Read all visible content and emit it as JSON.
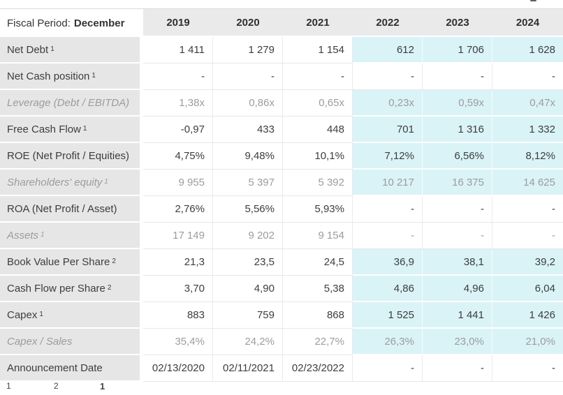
{
  "table": {
    "header": {
      "fiscal_period_label": "Fiscal Period:",
      "fiscal_period_value": "December",
      "years": [
        "2019",
        "2020",
        "2021",
        "2022",
        "2023",
        "2024"
      ]
    },
    "rows": [
      {
        "label": "Net Debt",
        "sup": "1",
        "muted": false,
        "estimates_highlight": true,
        "values": [
          "1 411",
          "1 279",
          "1 154",
          "612",
          "1 706",
          "1 628"
        ]
      },
      {
        "label": "Net Cash position",
        "sup": "1",
        "muted": false,
        "estimates_highlight": false,
        "values": [
          "-",
          "-",
          "-",
          "-",
          "-",
          "-"
        ]
      },
      {
        "label": "Leverage (Debt / EBITDA)",
        "sup": "",
        "muted": true,
        "estimates_highlight": true,
        "values": [
          "1,38x",
          "0,86x",
          "0,65x",
          "0,23x",
          "0,59x",
          "0,47x"
        ]
      },
      {
        "label": "Free Cash Flow",
        "sup": "1",
        "muted": false,
        "estimates_highlight": true,
        "values": [
          "-0,97",
          "433",
          "448",
          "701",
          "1 316",
          "1 332"
        ]
      },
      {
        "label": "ROE (Net Profit / Equities)",
        "sup": "",
        "muted": false,
        "estimates_highlight": true,
        "values": [
          "4,75%",
          "9,48%",
          "10,1%",
          "7,12%",
          "6,56%",
          "8,12%"
        ]
      },
      {
        "label": "Shareholders' equity",
        "sup": "1",
        "muted": true,
        "estimates_highlight": true,
        "values": [
          "9 955",
          "5 397",
          "5 392",
          "10 217",
          "16 375",
          "14 625"
        ]
      },
      {
        "label": "ROA (Net Profit / Asset)",
        "sup": "",
        "muted": false,
        "estimates_highlight": false,
        "values": [
          "2,76%",
          "5,56%",
          "5,93%",
          "-",
          "-",
          "-"
        ]
      },
      {
        "label": "Assets",
        "sup": "1",
        "muted": true,
        "estimates_highlight": false,
        "values": [
          "17 149",
          "9 202",
          "9 154",
          "-",
          "-",
          "-"
        ]
      },
      {
        "label": "Book Value Per Share",
        "sup": "2",
        "muted": false,
        "estimates_highlight": true,
        "values": [
          "21,3",
          "23,5",
          "24,5",
          "36,9",
          "38,1",
          "39,2"
        ]
      },
      {
        "label": "Cash Flow per Share",
        "sup": "2",
        "muted": false,
        "estimates_highlight": true,
        "values": [
          "3,70",
          "4,90",
          "5,38",
          "4,86",
          "4,96",
          "6,04"
        ]
      },
      {
        "label": "Capex",
        "sup": "1",
        "muted": false,
        "estimates_highlight": true,
        "values": [
          "883",
          "759",
          "868",
          "1 525",
          "1 441",
          "1 426"
        ]
      },
      {
        "label": "Capex / Sales",
        "sup": "",
        "muted": true,
        "estimates_highlight": true,
        "values": [
          "35,4%",
          "24,2%",
          "22,7%",
          "26,3%",
          "23,0%",
          "21,0%"
        ]
      },
      {
        "label": "Announcement Date",
        "sup": "",
        "muted": false,
        "estimates_highlight": false,
        "values": [
          "02/13/2020",
          "02/11/2021",
          "02/23/2022",
          "-",
          "-",
          "-"
        ]
      }
    ],
    "footnote_markers": [
      "1",
      "2",
      "1"
    ]
  },
  "colors": {
    "estimate_bg": "#daf3f7",
    "header_bg": "#eaeaea",
    "label_bg": "#e6e6e6",
    "text_primary": "#3d3d3d",
    "text_muted": "#9c9c9c"
  }
}
